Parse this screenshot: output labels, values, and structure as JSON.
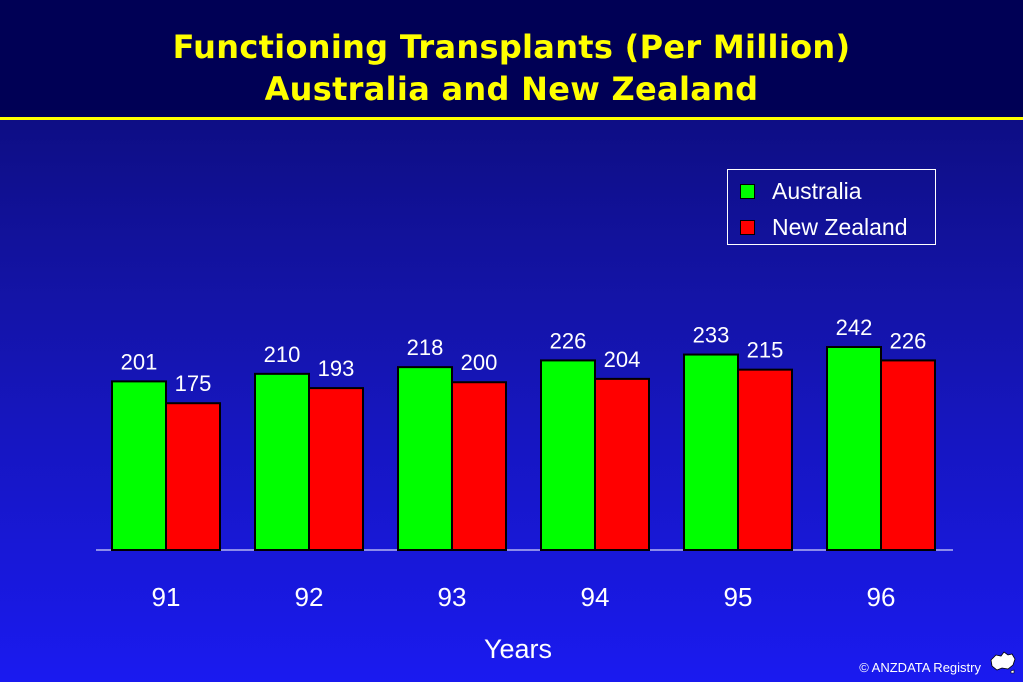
{
  "title_line1": "Functioning Transplants (Per Million)",
  "title_line2": "Australia and New Zealand",
  "footer_text": "© ANZDATA Registry",
  "chart_data": {
    "type": "bar",
    "categories": [
      "91",
      "92",
      "93",
      "94",
      "95",
      "96"
    ],
    "series": [
      {
        "name": "Australia",
        "values": [
          201,
          210,
          218,
          226,
          233,
          242
        ],
        "color": "#00ff00"
      },
      {
        "name": "New Zealand",
        "values": [
          175,
          193,
          200,
          204,
          215,
          226
        ],
        "color": "#ff0000"
      }
    ],
    "xlabel": "Years",
    "ylabel": "",
    "ylim": [
      0,
      242
    ],
    "grid": false,
    "legend_position": "top-right"
  }
}
